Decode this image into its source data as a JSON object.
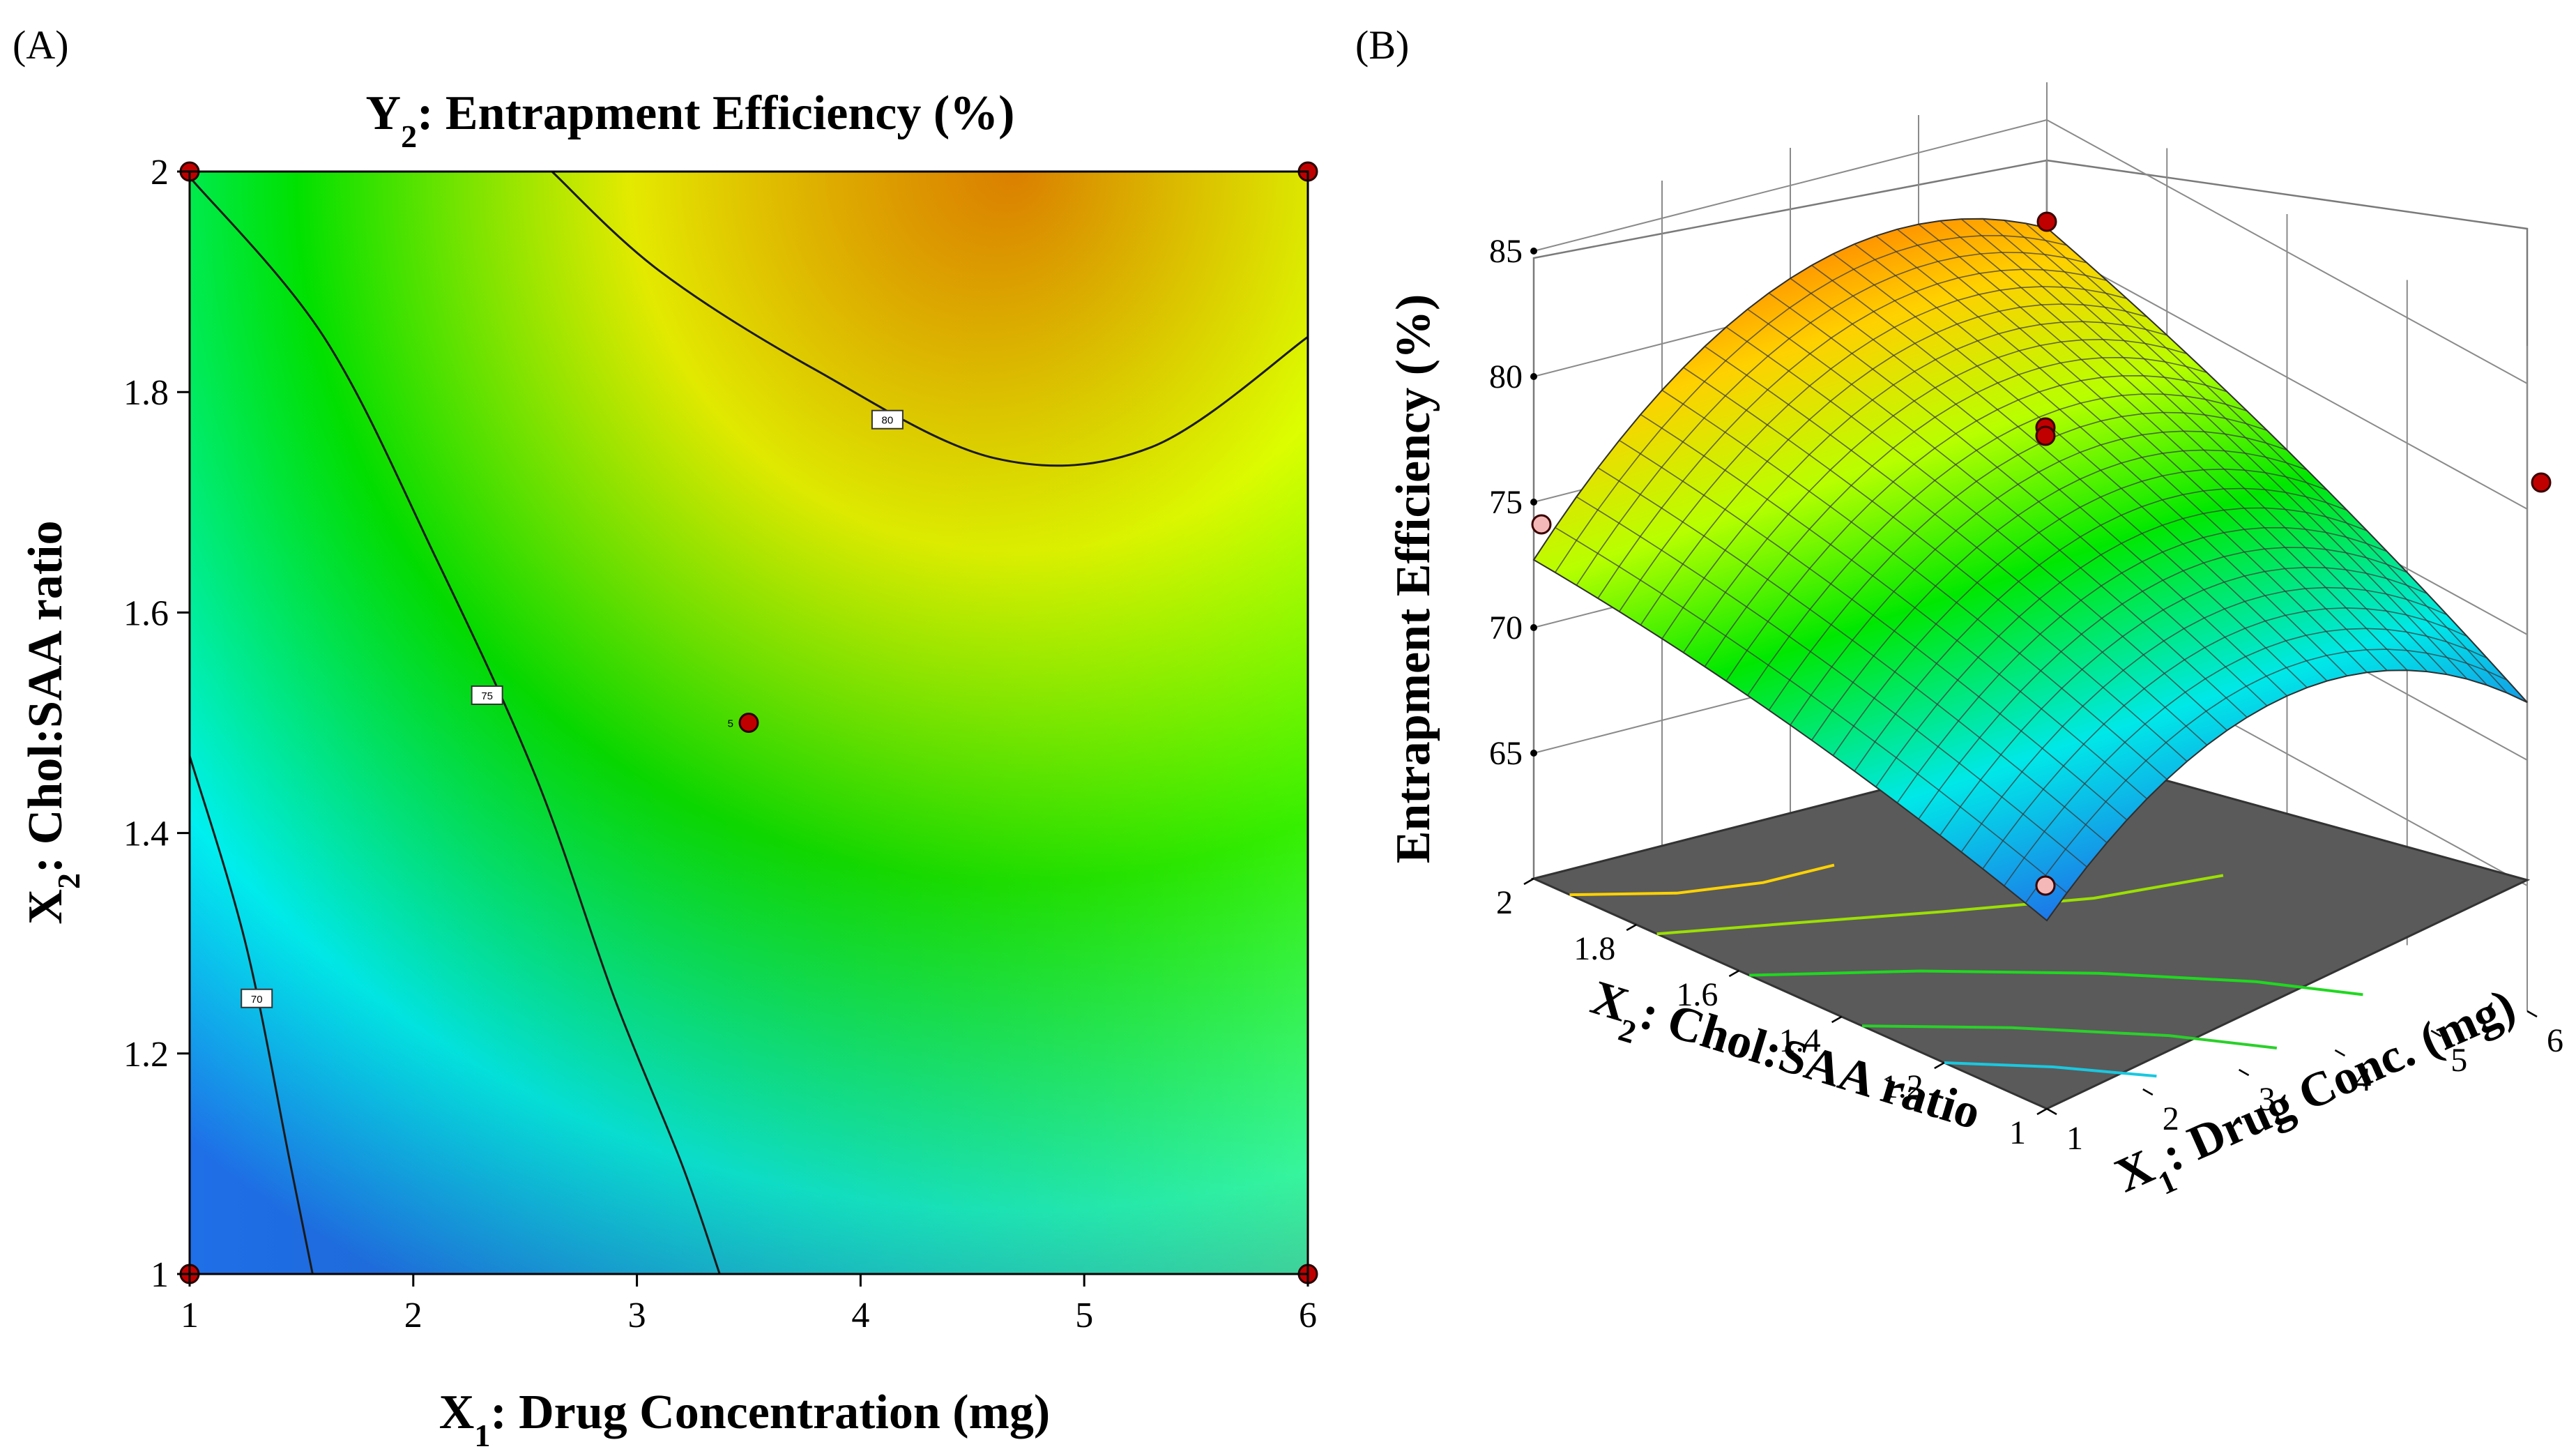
{
  "panels": {
    "a_label": "(A)",
    "b_label": "(B)"
  },
  "colors": {
    "low": "#1f6fe8",
    "mid_low": "#00f0f0",
    "mid": "#00e800",
    "mid_high": "#ffff00",
    "high": "#ff6a00",
    "contour_line": "#1a1a1a",
    "design_point": "#c00000",
    "floor": "#5a5a5a"
  },
  "chart_data": [
    {
      "type": "contour",
      "title_prefix": "Y",
      "title_sub": "2",
      "title_rest": ": Entrapment Efficiency (%)",
      "xlabel_prefix": "X",
      "xlabel_sub": "1",
      "xlabel_rest": ": Drug Concentration (mg)",
      "ylabel_prefix": "X",
      "ylabel_sub": "2",
      "ylabel_rest": ": Chol:SAA ratio",
      "xlim": [
        1,
        6
      ],
      "ylim": [
        1,
        2
      ],
      "x_ticks": [
        "1",
        "2",
        "3",
        "4",
        "5",
        "6"
      ],
      "y_ticks": [
        "1",
        "1.2",
        "1.4",
        "1.6",
        "1.8",
        "2"
      ],
      "contours": [
        {
          "level": "70",
          "points": [
            [
              1.0,
              1.47
            ],
            [
              1.25,
              1.3
            ],
            [
              1.45,
              1.1
            ],
            [
              1.55,
              1.0
            ]
          ],
          "label_at": [
            1.3,
            1.25
          ]
        },
        {
          "level": "75",
          "points": [
            [
              1.0,
              1.995
            ],
            [
              1.6,
              1.85
            ],
            [
              2.1,
              1.65
            ],
            [
              2.55,
              1.45
            ],
            [
              2.9,
              1.25
            ],
            [
              3.2,
              1.1
            ],
            [
              3.37,
              1.0
            ]
          ],
          "label_at": [
            2.33,
            1.525
          ]
        },
        {
          "level": "80",
          "points": [
            [
              2.62,
              2.0
            ],
            [
              3.1,
              1.91
            ],
            [
              3.8,
              1.82
            ],
            [
              4.6,
              1.74
            ],
            [
              5.3,
              1.75
            ],
            [
              6.0,
              1.85
            ]
          ],
          "label_at": [
            4.12,
            1.775
          ]
        }
      ],
      "design_points": [
        {
          "x": 1,
          "y": 2,
          "label": ""
        },
        {
          "x": 6,
          "y": 2,
          "label": ""
        },
        {
          "x": 1,
          "y": 1,
          "label": ""
        },
        {
          "x": 6,
          "y": 1,
          "label": ""
        },
        {
          "x": 3.5,
          "y": 1.5,
          "label": "5"
        }
      ]
    },
    {
      "type": "surface3d",
      "zlabel": "Entrapment Efficiency (%)",
      "xlabel_prefix": "X",
      "xlabel_sub": "1",
      "xlabel_rest": ": Drug Conc. (mg)",
      "ylabel_prefix": "X",
      "ylabel_sub": "2",
      "ylabel_rest": ": Chol:SAA ratio",
      "x_ticks": [
        "1",
        "2",
        "3",
        "4",
        "5",
        "6"
      ],
      "y_ticks": [
        "1",
        "1.2",
        "1.4",
        "1.6",
        "1.8",
        "2"
      ],
      "z_ticks": [
        "65",
        "70",
        "75",
        "80",
        "85"
      ],
      "zlim": [
        60,
        85
      ]
    }
  ]
}
